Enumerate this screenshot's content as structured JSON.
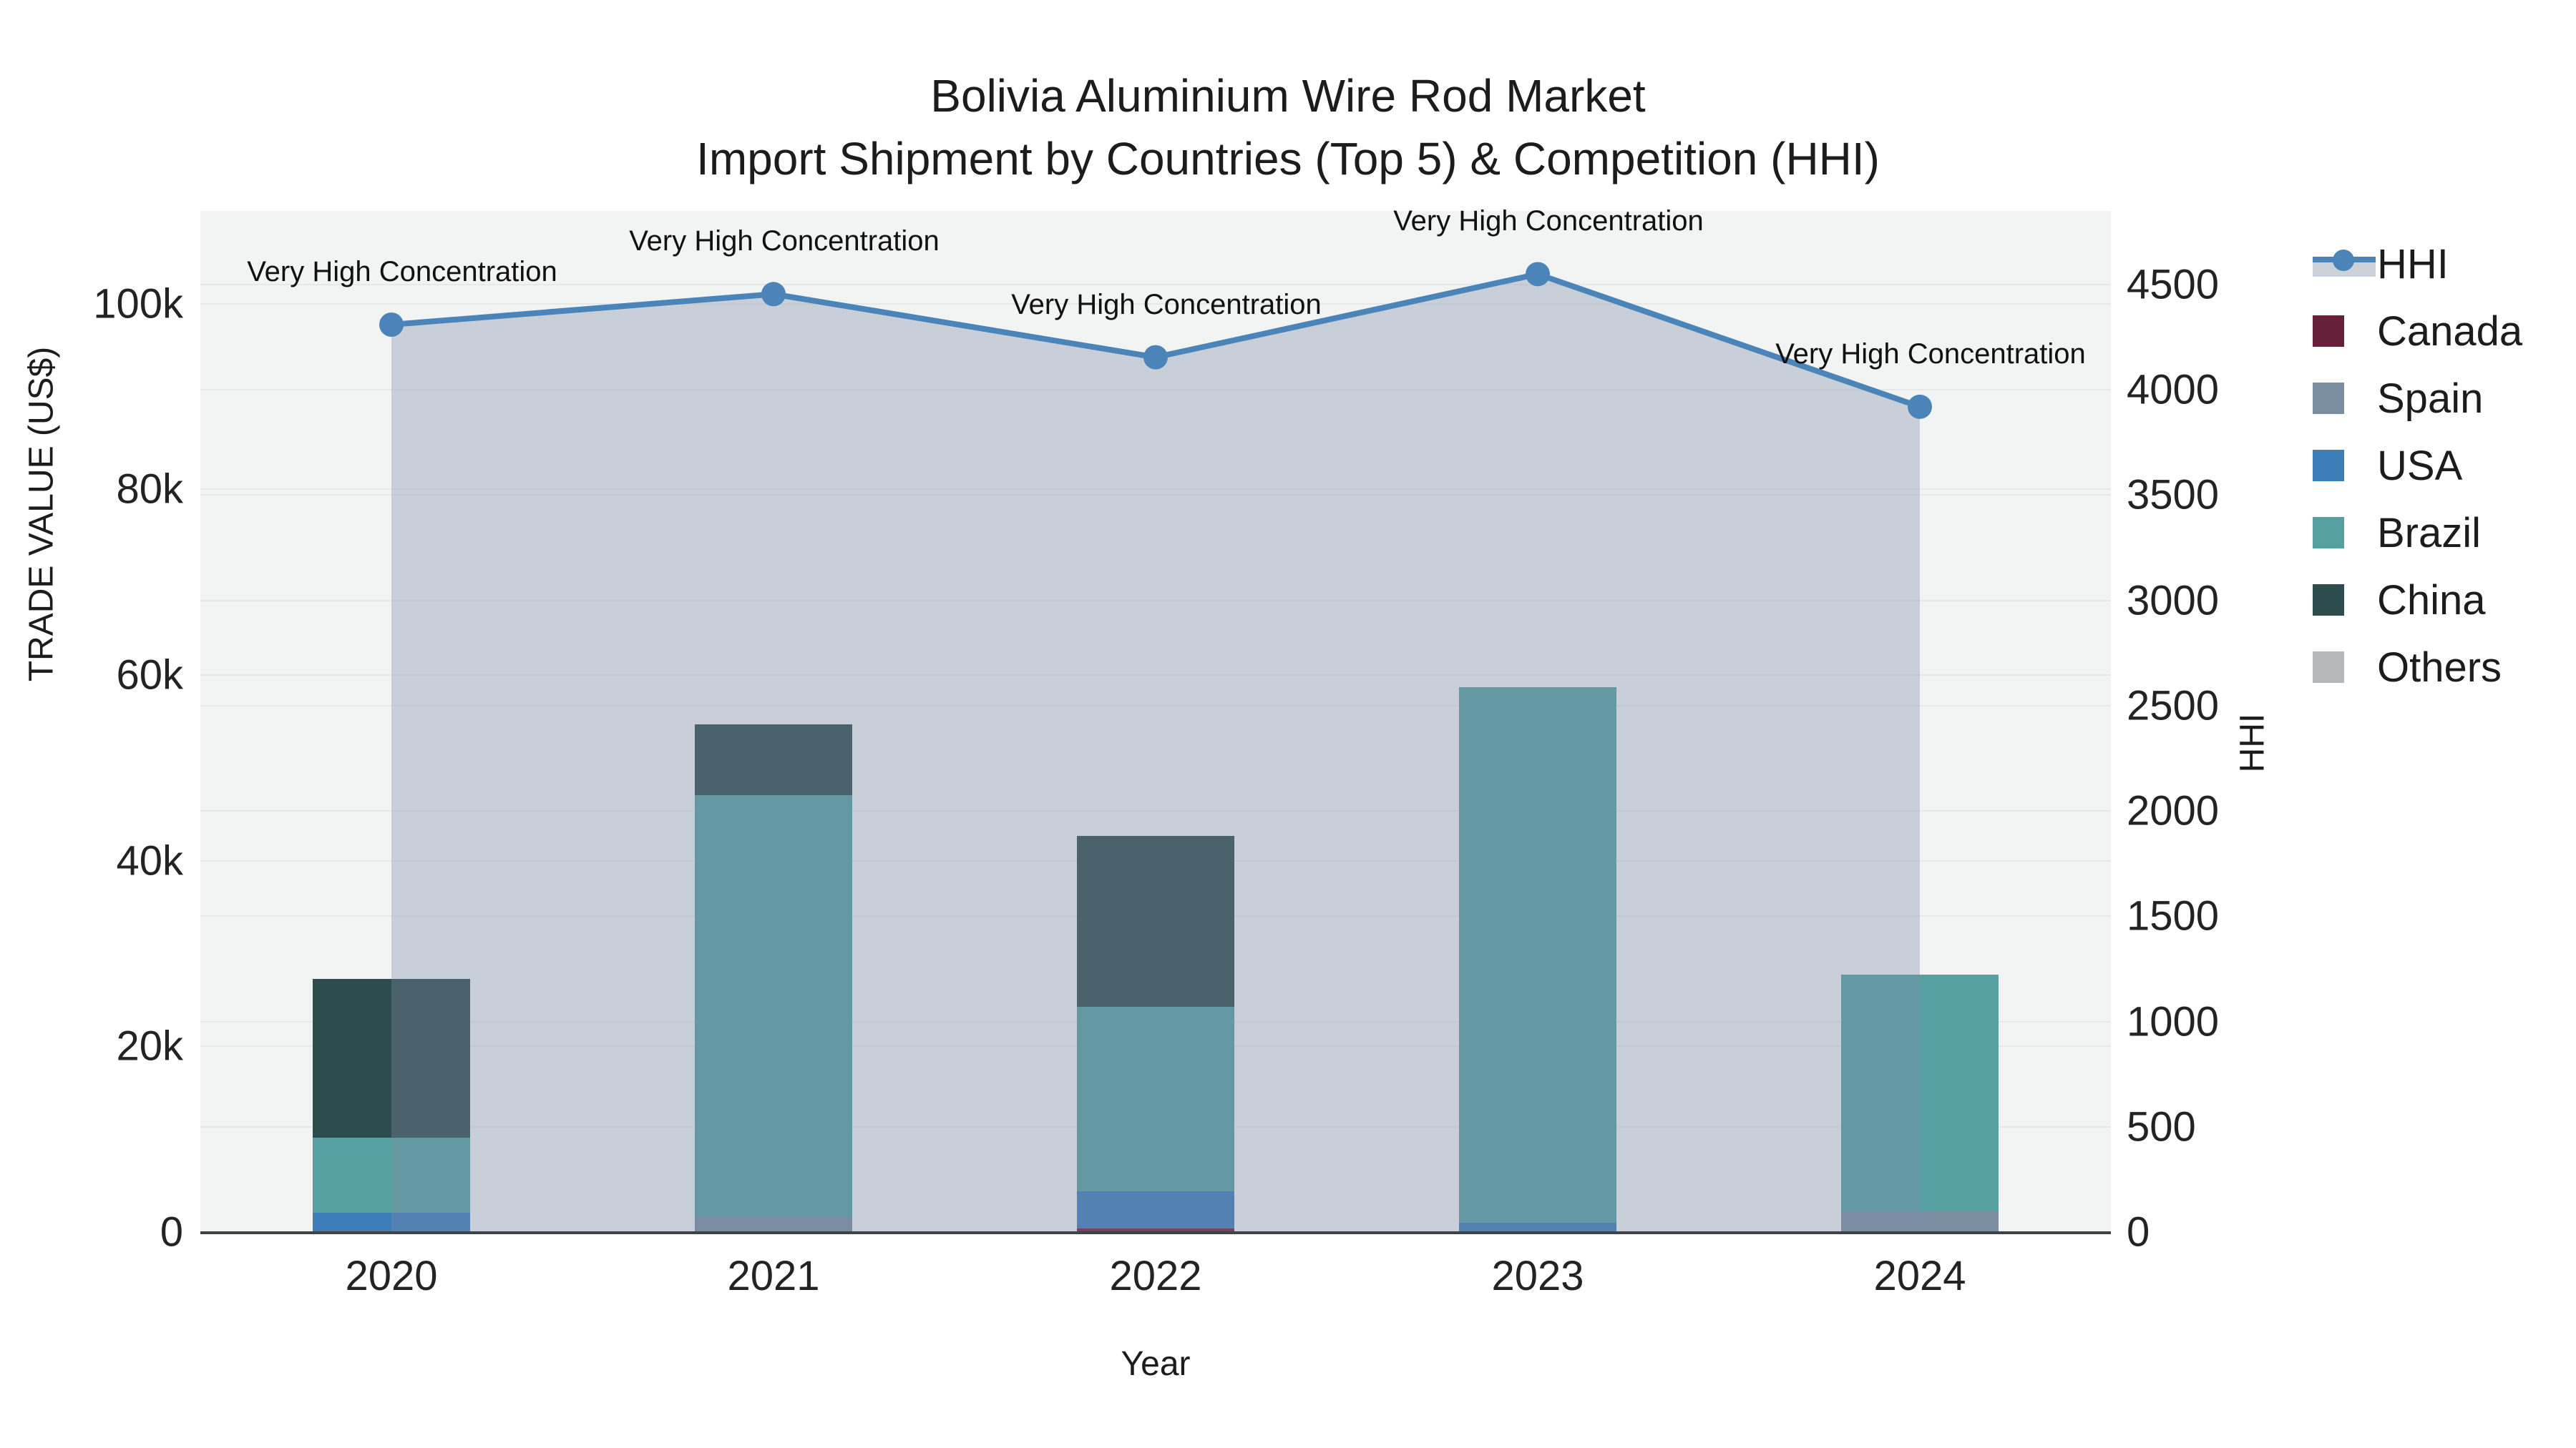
{
  "title": {
    "line1": "Bolivia Aluminium Wire Rod Market",
    "line2": "Import Shipment by Countries (Top 5) & Competition (HHI)"
  },
  "axes": {
    "x": {
      "title": "Year",
      "ticks": [
        "2020",
        "2021",
        "2022",
        "2023",
        "2024"
      ]
    },
    "left": {
      "title": "TRADE VALUE (US$)",
      "ticks": [
        "0",
        "20k",
        "40k",
        "60k",
        "80k",
        "100k"
      ],
      "tick_values": [
        0,
        20000,
        40000,
        60000,
        80000,
        100000
      ]
    },
    "right": {
      "title": "HHI",
      "ticks": [
        "0",
        "500",
        "1000",
        "1500",
        "2000",
        "2500",
        "3000",
        "3500",
        "4000",
        "4500"
      ],
      "tick_values": [
        0,
        500,
        1000,
        1500,
        2000,
        2500,
        3000,
        3500,
        4000,
        4500
      ]
    }
  },
  "legend": [
    {
      "label": "HHI",
      "type": "line",
      "color": "#4a84b8"
    },
    {
      "label": "Canada",
      "type": "swatch",
      "color": "#67203c"
    },
    {
      "label": "Spain",
      "type": "swatch",
      "color": "#7b8da1"
    },
    {
      "label": "USA",
      "type": "swatch",
      "color": "#3d7db8"
    },
    {
      "label": "Brazil",
      "type": "swatch",
      "color": "#57a0a1"
    },
    {
      "label": "China",
      "type": "swatch",
      "color": "#2d4c4e"
    },
    {
      "label": "Others",
      "type": "swatch",
      "color": "#b5b8bb"
    }
  ],
  "colors": {
    "hhi_line": "#4a84b8",
    "area_fill": "rgba(125,140,165,0.35)",
    "plot_bg": "#f2f3f3",
    "grid": "#e6e7e9",
    "axis_line": "#3f4347"
  },
  "chart_data": {
    "type": "combo: stacked bar (left axis) + line with area fill (right axis)",
    "title": "Bolivia Aluminium Wire Rod Market — Import Shipment by Countries (Top 5) & Competition (HHI)",
    "xlabel": "Year",
    "ylabel_left": "TRADE VALUE (US$)",
    "ylabel_right": "HHI",
    "ylim_left": [
      0,
      110000
    ],
    "ylim_right": [
      0,
      4850
    ],
    "grid": true,
    "legend_position": "right",
    "categories": [
      "2020",
      "2021",
      "2022",
      "2023",
      "2024"
    ],
    "bar_series": [
      {
        "name": "China",
        "color": "#2d4c4e",
        "values": [
          27300,
          54700,
          42700,
          45000,
          22600
        ]
      },
      {
        "name": "Brazil",
        "color": "#57a0a1",
        "values": [
          10200,
          47100,
          24300,
          58700,
          27700
        ]
      },
      {
        "name": "USA",
        "color": "#3d7db8",
        "values": [
          2100,
          0,
          4400,
          1000,
          700
        ]
      },
      {
        "name": "Spain",
        "color": "#7b8da1",
        "values": [
          0,
          1600,
          0,
          0,
          2200
        ]
      },
      {
        "name": "Canada",
        "color": "#67203c",
        "values": [
          0,
          0,
          400,
          0,
          0
        ]
      },
      {
        "name": "Others",
        "color": "#b5b8bb",
        "values": [
          0,
          0,
          0,
          0,
          0
        ]
      }
    ],
    "line_series": {
      "name": "HHI",
      "axis": "right",
      "fill": "tozeroy",
      "values": [
        4310,
        4455,
        4155,
        4550,
        3920
      ]
    },
    "point_annotations": [
      "Very High Concentration",
      "Very High Concentration",
      "Very High Concentration",
      "Very High Concentration",
      "Very High Concentration"
    ]
  }
}
